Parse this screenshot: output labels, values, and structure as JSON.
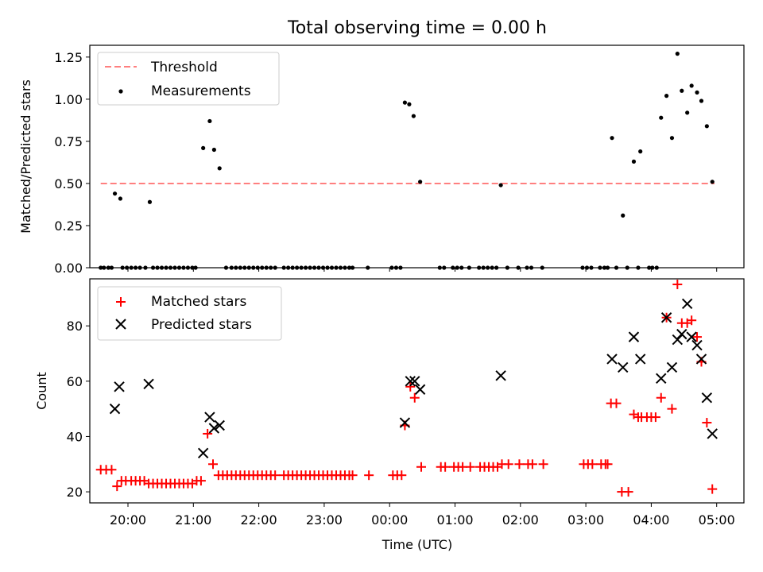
{
  "chart_data": [
    {
      "type": "scatter",
      "title": "Total observing time = 0.00 h",
      "xlabel": "",
      "ylabel": "Matched/Predicted stars",
      "xlim": [
        "19:25",
        "05:25"
      ],
      "ylim": [
        0,
        1.32
      ],
      "yticks": [
        "0.00",
        "0.25",
        "0.50",
        "0.75",
        "1.00",
        "1.25"
      ],
      "xtick_times": [
        "20:00",
        "21:00",
        "22:00",
        "23:00",
        "00:00",
        "01:00",
        "02:00",
        "03:00",
        "04:00",
        "05:00"
      ],
      "legend": {
        "placement": "upper-left",
        "entries": [
          "Threshold",
          "Measurements"
        ]
      },
      "series": [
        {
          "name": "Threshold",
          "style": "dashed-line",
          "color": "#ff7f7f",
          "points": [
            [
              "19:35",
              0.5
            ],
            [
              "04:58",
              0.5
            ]
          ]
        },
        {
          "name": "Measurements",
          "style": "dot",
          "color": "#000000",
          "points": [
            [
              "19:35",
              0
            ],
            [
              "19:38",
              0
            ],
            [
              "19:42",
              0
            ],
            [
              "19:45",
              0
            ],
            [
              "19:48",
              0.44
            ],
            [
              "19:53",
              0.41
            ],
            [
              "19:55",
              0
            ],
            [
              "19:59",
              0
            ],
            [
              "20:03",
              0
            ],
            [
              "20:07",
              0
            ],
            [
              "20:11",
              0
            ],
            [
              "20:16",
              0
            ],
            [
              "20:20",
              0.39
            ],
            [
              "20:23",
              0
            ],
            [
              "20:27",
              0
            ],
            [
              "20:31",
              0
            ],
            [
              "20:35",
              0
            ],
            [
              "20:39",
              0
            ],
            [
              "20:43",
              0
            ],
            [
              "20:47",
              0
            ],
            [
              "20:51",
              0
            ],
            [
              "20:55",
              0
            ],
            [
              "20:59",
              0
            ],
            [
              "21:02",
              0
            ],
            [
              "21:09",
              0.71
            ],
            [
              "21:15",
              0.87
            ],
            [
              "21:19",
              0.7
            ],
            [
              "21:24",
              0.59
            ],
            [
              "21:30",
              0
            ],
            [
              "21:35",
              0
            ],
            [
              "21:39",
              0
            ],
            [
              "21:43",
              0
            ],
            [
              "21:47",
              0
            ],
            [
              "21:51",
              0
            ],
            [
              "21:55",
              0
            ],
            [
              "21:59",
              0
            ],
            [
              "22:03",
              0
            ],
            [
              "22:07",
              0
            ],
            [
              "22:11",
              0
            ],
            [
              "22:15",
              0
            ],
            [
              "22:23",
              0
            ],
            [
              "22:27",
              0
            ],
            [
              "22:31",
              0
            ],
            [
              "22:35",
              0
            ],
            [
              "22:39",
              0
            ],
            [
              "22:43",
              0
            ],
            [
              "22:47",
              0
            ],
            [
              "22:51",
              0
            ],
            [
              "22:55",
              0
            ],
            [
              "22:59",
              0
            ],
            [
              "23:03",
              0
            ],
            [
              "23:07",
              0
            ],
            [
              "23:11",
              0
            ],
            [
              "23:15",
              0
            ],
            [
              "23:19",
              0
            ],
            [
              "23:23",
              0
            ],
            [
              "23:26",
              0
            ],
            [
              "23:40",
              0
            ],
            [
              "00:02",
              0
            ],
            [
              "00:06",
              0
            ],
            [
              "00:10",
              0
            ],
            [
              "00:14",
              0.98
            ],
            [
              "00:18",
              0.97
            ],
            [
              "00:22",
              0.9
            ],
            [
              "00:28",
              0.51
            ],
            [
              "00:46",
              0
            ],
            [
              "00:50",
              0
            ],
            [
              "00:58",
              0
            ],
            [
              "01:02",
              0
            ],
            [
              "01:06",
              0
            ],
            [
              "01:13",
              0
            ],
            [
              "01:22",
              0
            ],
            [
              "01:26",
              0
            ],
            [
              "01:30",
              0
            ],
            [
              "01:34",
              0
            ],
            [
              "01:38",
              0
            ],
            [
              "01:42",
              0.49
            ],
            [
              "01:48",
              0
            ],
            [
              "01:58",
              0
            ],
            [
              "02:06",
              0
            ],
            [
              "02:10",
              0
            ],
            [
              "02:20",
              0
            ],
            [
              "02:57",
              0
            ],
            [
              "03:01",
              0
            ],
            [
              "03:05",
              0
            ],
            [
              "03:13",
              0
            ],
            [
              "03:17",
              0
            ],
            [
              "03:20",
              0
            ],
            [
              "03:24",
              0.77
            ],
            [
              "03:28",
              0
            ],
            [
              "03:34",
              0.31
            ],
            [
              "03:38",
              0
            ],
            [
              "03:44",
              0.63
            ],
            [
              "03:48",
              0
            ],
            [
              "03:50",
              0.69
            ],
            [
              "03:58",
              0
            ],
            [
              "04:01",
              0
            ],
            [
              "04:05",
              0
            ],
            [
              "04:09",
              0.89
            ],
            [
              "04:14",
              1.02
            ],
            [
              "04:19",
              0.77
            ],
            [
              "04:24",
              1.27
            ],
            [
              "04:28",
              1.05
            ],
            [
              "04:33",
              0.92
            ],
            [
              "04:37",
              1.08
            ],
            [
              "04:42",
              1.04
            ],
            [
              "04:46",
              0.99
            ],
            [
              "04:51",
              0.84
            ],
            [
              "04:56",
              0.51
            ]
          ]
        }
      ]
    },
    {
      "type": "scatter",
      "title": "",
      "xlabel": "Time (UTC)",
      "ylabel": "Count",
      "xlim": [
        "19:25",
        "05:25"
      ],
      "ylim": [
        16,
        97
      ],
      "yticks": [
        "20",
        "40",
        "60",
        "80"
      ],
      "xticks": [
        "20:00",
        "21:00",
        "22:00",
        "23:00",
        "00:00",
        "01:00",
        "02:00",
        "03:00",
        "04:00",
        "05:00"
      ],
      "legend": {
        "placement": "upper-left",
        "entries": [
          "Matched stars",
          "Predicted stars"
        ]
      },
      "series": [
        {
          "name": "Matched stars",
          "style": "plus",
          "color": "#ff0000",
          "points": [
            [
              "19:35",
              28
            ],
            [
              "19:40",
              28
            ],
            [
              "19:45",
              28
            ],
            [
              "19:50",
              22
            ],
            [
              "19:54",
              24
            ],
            [
              "19:58",
              24
            ],
            [
              "20:03",
              24
            ],
            [
              "20:07",
              24
            ],
            [
              "20:11",
              24
            ],
            [
              "20:15",
              24
            ],
            [
              "20:19",
              23
            ],
            [
              "20:23",
              23
            ],
            [
              "20:27",
              23
            ],
            [
              "20:31",
              23
            ],
            [
              "20:35",
              23
            ],
            [
              "20:39",
              23
            ],
            [
              "20:43",
              23
            ],
            [
              "20:47",
              23
            ],
            [
              "20:51",
              23
            ],
            [
              "20:55",
              23
            ],
            [
              "20:59",
              23
            ],
            [
              "21:03",
              24
            ],
            [
              "21:07",
              24
            ],
            [
              "21:13",
              41
            ],
            [
              "21:18",
              30
            ],
            [
              "21:23",
              26
            ],
            [
              "21:27",
              26
            ],
            [
              "21:31",
              26
            ],
            [
              "21:35",
              26
            ],
            [
              "21:39",
              26
            ],
            [
              "21:43",
              26
            ],
            [
              "21:47",
              26
            ],
            [
              "21:51",
              26
            ],
            [
              "21:55",
              26
            ],
            [
              "21:59",
              26
            ],
            [
              "22:03",
              26
            ],
            [
              "22:07",
              26
            ],
            [
              "22:11",
              26
            ],
            [
              "22:15",
              26
            ],
            [
              "22:23",
              26
            ],
            [
              "22:27",
              26
            ],
            [
              "22:31",
              26
            ],
            [
              "22:35",
              26
            ],
            [
              "22:39",
              26
            ],
            [
              "22:43",
              26
            ],
            [
              "22:47",
              26
            ],
            [
              "22:51",
              26
            ],
            [
              "22:55",
              26
            ],
            [
              "22:59",
              26
            ],
            [
              "23:03",
              26
            ],
            [
              "23:07",
              26
            ],
            [
              "23:11",
              26
            ],
            [
              "23:15",
              26
            ],
            [
              "23:19",
              26
            ],
            [
              "23:23",
              26
            ],
            [
              "23:26",
              26
            ],
            [
              "23:41",
              26
            ],
            [
              "00:03",
              26
            ],
            [
              "00:07",
              26
            ],
            [
              "00:11",
              26
            ],
            [
              "00:14",
              44
            ],
            [
              "00:19",
              58
            ],
            [
              "00:23",
              54
            ],
            [
              "00:29",
              29
            ],
            [
              "00:47",
              29
            ],
            [
              "00:51",
              29
            ],
            [
              "00:59",
              29
            ],
            [
              "01:03",
              29
            ],
            [
              "01:07",
              29
            ],
            [
              "01:14",
              29
            ],
            [
              "01:23",
              29
            ],
            [
              "01:27",
              29
            ],
            [
              "01:31",
              29
            ],
            [
              "01:35",
              29
            ],
            [
              "01:39",
              29
            ],
            [
              "01:43",
              30
            ],
            [
              "01:49",
              30
            ],
            [
              "01:59",
              30
            ],
            [
              "02:07",
              30
            ],
            [
              "02:11",
              30
            ],
            [
              "02:21",
              30
            ],
            [
              "02:58",
              30
            ],
            [
              "03:02",
              30
            ],
            [
              "03:06",
              30
            ],
            [
              "03:14",
              30
            ],
            [
              "03:18",
              30
            ],
            [
              "03:20",
              30
            ],
            [
              "03:23",
              52
            ],
            [
              "03:28",
              52
            ],
            [
              "03:33",
              20
            ],
            [
              "03:39",
              20
            ],
            [
              "03:44",
              48
            ],
            [
              "03:48",
              47
            ],
            [
              "03:51",
              47
            ],
            [
              "03:56",
              47
            ],
            [
              "04:00",
              47
            ],
            [
              "04:04",
              47
            ],
            [
              "04:09",
              54
            ],
            [
              "04:14",
              83
            ],
            [
              "04:19",
              50
            ],
            [
              "04:24",
              95
            ],
            [
              "04:28",
              81
            ],
            [
              "04:33",
              81
            ],
            [
              "04:37",
              82
            ],
            [
              "04:42",
              76
            ],
            [
              "04:46",
              67
            ],
            [
              "04:51",
              45
            ],
            [
              "04:56",
              21
            ]
          ]
        },
        {
          "name": "Predicted stars",
          "style": "x",
          "color": "#000000",
          "points": [
            [
              "19:48",
              50
            ],
            [
              "19:52",
              58
            ],
            [
              "20:19",
              59
            ],
            [
              "21:09",
              34
            ],
            [
              "21:15",
              47
            ],
            [
              "21:19",
              43
            ],
            [
              "21:24",
              44
            ],
            [
              "00:14",
              45
            ],
            [
              "00:19",
              60
            ],
            [
              "00:23",
              60
            ],
            [
              "00:28",
              57
            ],
            [
              "01:42",
              62
            ],
            [
              "03:24",
              68
            ],
            [
              "03:34",
              65
            ],
            [
              "03:44",
              76
            ],
            [
              "03:50",
              68
            ],
            [
              "04:09",
              61
            ],
            [
              "04:14",
              83
            ],
            [
              "04:19",
              65
            ],
            [
              "04:24",
              75
            ],
            [
              "04:28",
              77
            ],
            [
              "04:33",
              88
            ],
            [
              "04:37",
              76
            ],
            [
              "04:42",
              73
            ],
            [
              "04:46",
              68
            ],
            [
              "04:51",
              54
            ],
            [
              "04:56",
              41
            ]
          ]
        }
      ]
    }
  ]
}
